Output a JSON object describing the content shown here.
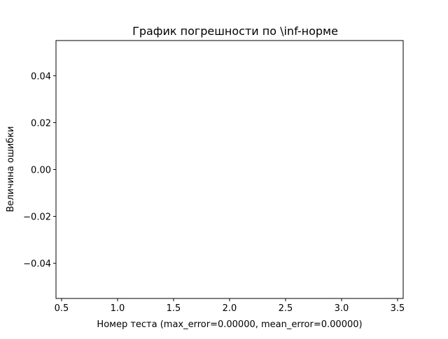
{
  "chart_data": {
    "type": "line",
    "title": "График погрешности по \\inf-норме",
    "xlabel": "Номер теста (max_error=0.00000, mean_error=0.00000)",
    "ylabel": "Величина ошибки",
    "xlim": [
      0.45,
      3.55
    ],
    "ylim": [
      -0.055,
      0.055
    ],
    "x_ticks": [
      0.5,
      1.0,
      1.5,
      2.0,
      2.5,
      3.0,
      3.5
    ],
    "x_tick_labels": [
      "0.5",
      "1.0",
      "1.5",
      "2.0",
      "2.5",
      "3.0",
      "3.5"
    ],
    "y_ticks": [
      -0.04,
      -0.02,
      0.0,
      0.02,
      0.04
    ],
    "y_tick_labels": [
      "−0.04",
      "−0.02",
      "0.00",
      "0.02",
      "0.04"
    ],
    "grid": false,
    "series": []
  },
  "colors": {
    "axes": "#000000",
    "background": "#ffffff"
  }
}
